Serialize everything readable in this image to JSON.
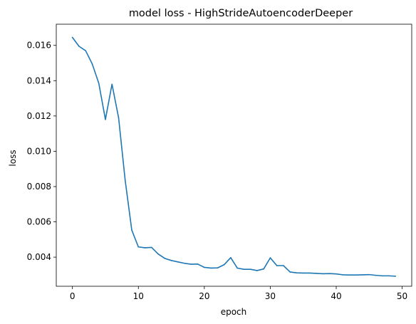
{
  "chart_data": {
    "type": "line",
    "title": "model loss - HighStrideAutoencoderDeeper",
    "xlabel": "epoch",
    "ylabel": "loss",
    "xlim": [
      -2.45,
      51.45
    ],
    "ylim": [
      0.00235,
      0.0172
    ],
    "xticks": [
      0,
      10,
      20,
      30,
      40,
      50
    ],
    "yticks": [
      0.004,
      0.006,
      0.008,
      0.01,
      0.012,
      0.014,
      0.016
    ],
    "xtick_labels": [
      "0",
      "10",
      "20",
      "30",
      "40",
      "50"
    ],
    "ytick_labels": [
      "0.004",
      "0.006",
      "0.008",
      "0.010",
      "0.012",
      "0.014",
      "0.016"
    ],
    "grid": false,
    "line_color": "#1f77b4",
    "series": [
      {
        "x": [
          0,
          1,
          2,
          3,
          4,
          5,
          6,
          7,
          8,
          9,
          10,
          11,
          12,
          13,
          14,
          15,
          16,
          17,
          18,
          19,
          20,
          21,
          22,
          23,
          24,
          25,
          26,
          27,
          28,
          29,
          30,
          31,
          32,
          33,
          34,
          35,
          36,
          37,
          38,
          39,
          40,
          41,
          42,
          43,
          44,
          45,
          46,
          47,
          48,
          49
        ],
        "values": [
          0.01645,
          0.01595,
          0.0157,
          0.01495,
          0.01385,
          0.0118,
          0.0138,
          0.0119,
          0.00835,
          0.00553,
          0.00458,
          0.00453,
          0.00455,
          0.00418,
          0.00393,
          0.00381,
          0.00373,
          0.00365,
          0.0036,
          0.00361,
          0.00342,
          0.00338,
          0.00339,
          0.00357,
          0.00397,
          0.00338,
          0.00331,
          0.00331,
          0.00324,
          0.00333,
          0.00396,
          0.00352,
          0.00352,
          0.00316,
          0.00311,
          0.0031,
          0.0031,
          0.00308,
          0.00306,
          0.00307,
          0.00305,
          0.003,
          0.00299,
          0.00299,
          0.003,
          0.00301,
          0.00297,
          0.00294,
          0.00294,
          0.00292
        ]
      }
    ]
  }
}
